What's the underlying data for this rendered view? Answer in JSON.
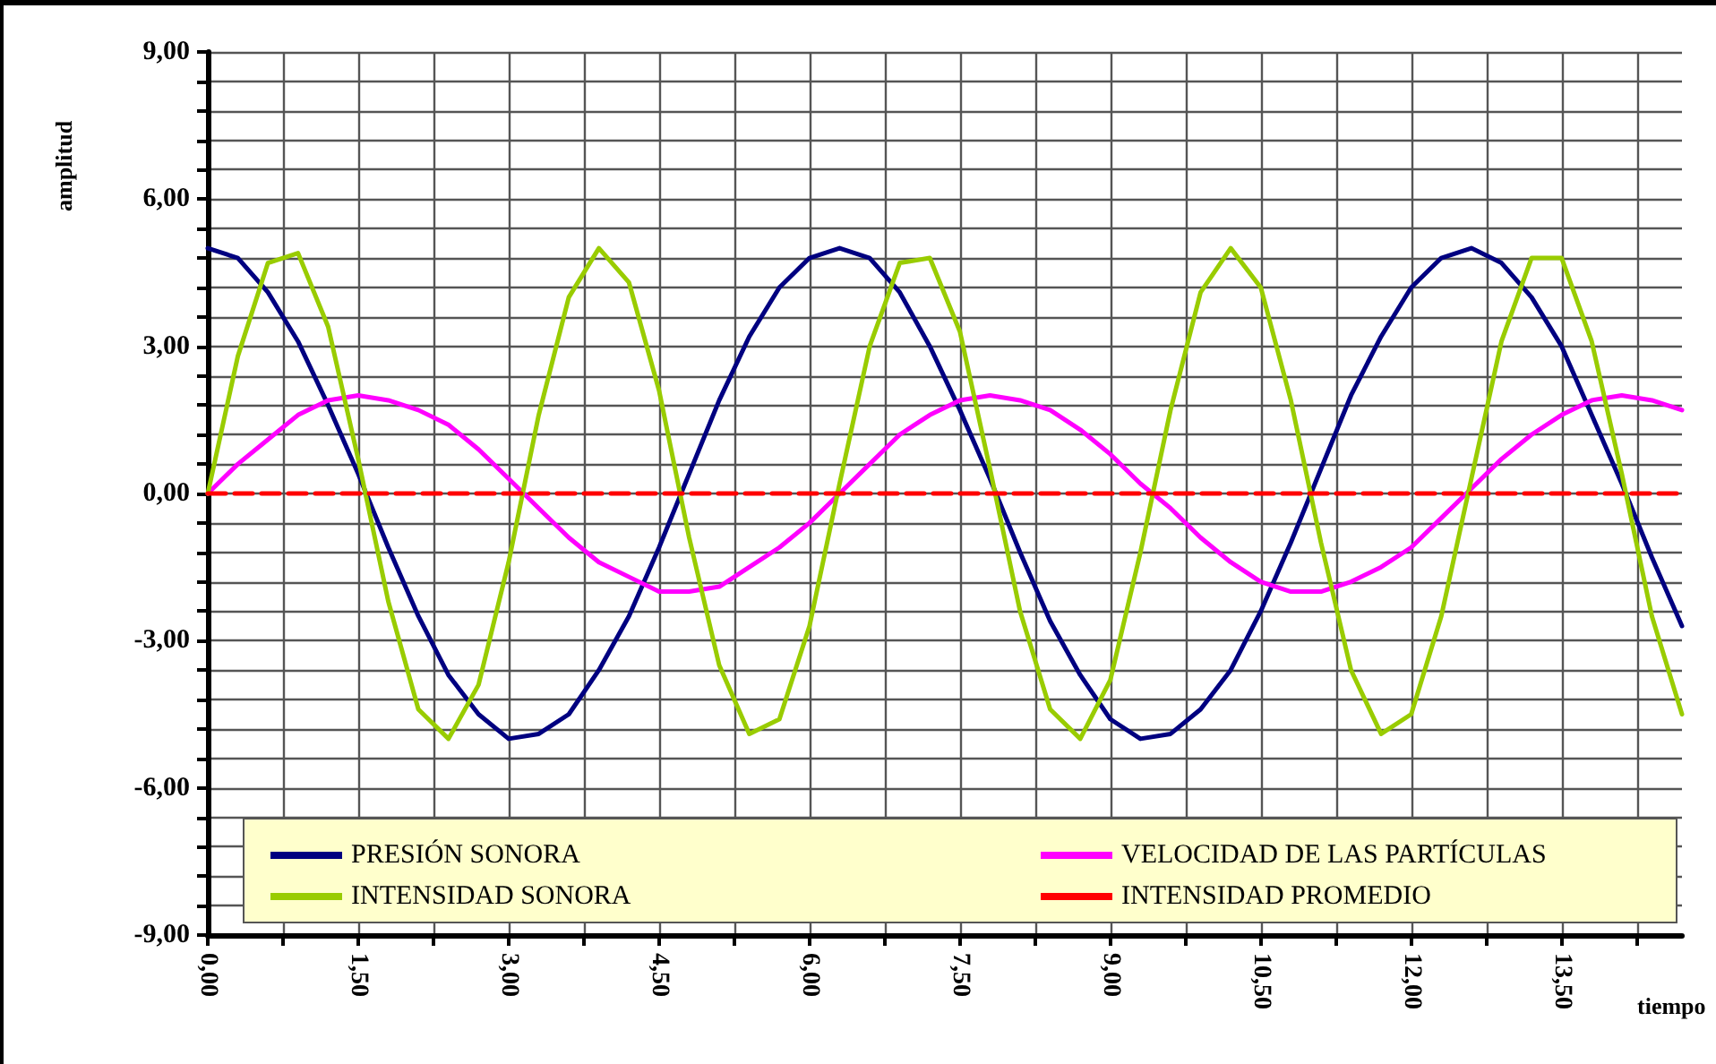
{
  "chart_data": {
    "type": "line",
    "xlabel": "tiempo",
    "ylabel": "amplitud",
    "x": [
      0,
      0.3,
      0.6,
      0.9,
      1.2,
      1.5,
      1.8,
      2.1,
      2.4,
      2.7,
      3.0,
      3.3,
      3.6,
      3.9,
      4.2,
      4.5,
      4.8,
      5.1,
      5.4,
      5.7,
      6.0,
      6.3,
      6.6,
      6.9,
      7.2,
      7.5,
      7.8,
      8.1,
      8.4,
      8.7,
      9.0,
      9.3,
      9.6,
      9.9,
      10.2,
      10.5,
      10.8,
      11.1,
      11.4,
      11.7,
      12.0,
      12.3,
      12.6,
      12.9,
      13.2,
      13.5,
      13.8,
      14.1,
      14.4,
      14.7
    ],
    "series": [
      {
        "name": "PRESIÓN SONORA",
        "color": "#000080",
        "values": [
          5.0,
          4.8,
          4.1,
          3.1,
          1.8,
          0.4,
          -1.1,
          -2.5,
          -3.7,
          -4.5,
          -5.0,
          -4.9,
          -4.5,
          -3.6,
          -2.5,
          -1.1,
          0.4,
          1.9,
          3.2,
          4.2,
          4.8,
          5.0,
          4.8,
          4.1,
          3.0,
          1.7,
          0.3,
          -1.2,
          -2.6,
          -3.7,
          -4.6,
          -5.0,
          -4.9,
          -4.4,
          -3.6,
          -2.4,
          -1.0,
          0.5,
          2.0,
          3.2,
          4.2,
          4.8,
          5.0,
          4.7,
          4.0,
          3.0,
          1.6,
          0.2,
          -1.3,
          -2.7
        ]
      },
      {
        "name": "VELOCIDAD DE LAS PARTÍCULAS",
        "color": "#ff00ff",
        "values": [
          0,
          0.6,
          1.1,
          1.6,
          1.9,
          2.0,
          1.9,
          1.7,
          1.4,
          0.9,
          0.3,
          -0.3,
          -0.9,
          -1.4,
          -1.7,
          -2.0,
          -2.0,
          -1.9,
          -1.5,
          -1.1,
          -0.6,
          0.0,
          0.6,
          1.2,
          1.6,
          1.9,
          2.0,
          1.9,
          1.7,
          1.3,
          0.8,
          0.2,
          -0.3,
          -0.9,
          -1.4,
          -1.8,
          -2.0,
          -2.0,
          -1.8,
          -1.5,
          -1.1,
          -0.5,
          0.1,
          0.7,
          1.2,
          1.6,
          1.9,
          2.0,
          1.9,
          1.7
        ]
      },
      {
        "name": "INTENSIDAD SONORA",
        "color": "#99cc00",
        "values": [
          0,
          2.8,
          4.7,
          4.9,
          3.4,
          0.7,
          -2.2,
          -4.4,
          -5.0,
          -3.9,
          -1.4,
          1.6,
          4.0,
          5.0,
          4.3,
          2.1,
          -0.9,
          -3.5,
          -4.9,
          -4.6,
          -2.7,
          0.2,
          3.0,
          4.7,
          4.8,
          3.3,
          0.5,
          -2.4,
          -4.4,
          -5.0,
          -3.8,
          -1.2,
          1.7,
          4.1,
          5.0,
          4.2,
          1.9,
          -1.0,
          -3.6,
          -4.9,
          -4.5,
          -2.5,
          0.3,
          3.1,
          4.8,
          4.8,
          3.1,
          0.4,
          -2.5,
          -4.5
        ]
      },
      {
        "name": "INTENSIDAD PROMEDIO",
        "color": "#ff0000",
        "line_style": "dashed",
        "x": [
          0,
          14.7
        ],
        "values": [
          0,
          0
        ]
      }
    ],
    "xlim": [
      0,
      14.7
    ],
    "xticks": [
      {
        "value": 0,
        "label": "0,00"
      },
      {
        "value": 0.75,
        "label": null
      },
      {
        "value": 1.5,
        "label": "1,50"
      },
      {
        "value": 2.25,
        "label": null
      },
      {
        "value": 3,
        "label": "3,00"
      },
      {
        "value": 3.75,
        "label": null
      },
      {
        "value": 4.5,
        "label": "4,50"
      },
      {
        "value": 5.25,
        "label": null
      },
      {
        "value": 6,
        "label": "6,00"
      },
      {
        "value": 6.75,
        "label": null
      },
      {
        "value": 7.5,
        "label": "7,50"
      },
      {
        "value": 8.25,
        "label": null
      },
      {
        "value": 9,
        "label": "9,00"
      },
      {
        "value": 9.75,
        "label": null
      },
      {
        "value": 10.5,
        "label": "10,50"
      },
      {
        "value": 11.25,
        "label": null
      },
      {
        "value": 12,
        "label": "12,00"
      },
      {
        "value": 12.75,
        "label": null
      },
      {
        "value": 13.5,
        "label": "13,50"
      },
      {
        "value": 14.25,
        "label": null
      }
    ],
    "ylim": [
      -9,
      9
    ],
    "yticks": [
      {
        "value": -9,
        "label": "-9,00"
      },
      {
        "value": -8.4,
        "label": null
      },
      {
        "value": -7.8,
        "label": null
      },
      {
        "value": -7.2,
        "label": null
      },
      {
        "value": -6.6,
        "label": null
      },
      {
        "value": -6,
        "label": "-6,00"
      },
      {
        "value": -5.4,
        "label": null
      },
      {
        "value": -4.8,
        "label": null
      },
      {
        "value": -4.2,
        "label": null
      },
      {
        "value": -3.6,
        "label": null
      },
      {
        "value": -3,
        "label": "-3,00"
      },
      {
        "value": -2.4,
        "label": null
      },
      {
        "value": -1.8,
        "label": null
      },
      {
        "value": -1.2,
        "label": null
      },
      {
        "value": -0.6,
        "label": null
      },
      {
        "value": 0,
        "label": "0,00"
      },
      {
        "value": 0.6,
        "label": null
      },
      {
        "value": 1.2,
        "label": null
      },
      {
        "value": 1.8,
        "label": null
      },
      {
        "value": 2.4,
        "label": null
      },
      {
        "value": 3,
        "label": "3,00"
      },
      {
        "value": 3.6,
        "label": null
      },
      {
        "value": 4.2,
        "label": null
      },
      {
        "value": 4.8,
        "label": null
      },
      {
        "value": 5.4,
        "label": null
      },
      {
        "value": 6,
        "label": "6,00"
      },
      {
        "value": 6.6,
        "label": null
      },
      {
        "value": 7.2,
        "label": null
      },
      {
        "value": 7.8,
        "label": null
      },
      {
        "value": 8.4,
        "label": null
      },
      {
        "value": 9,
        "label": "9,00"
      }
    ],
    "grid": true,
    "legend": "bottom",
    "marker": "none",
    "line_style": "solid"
  }
}
